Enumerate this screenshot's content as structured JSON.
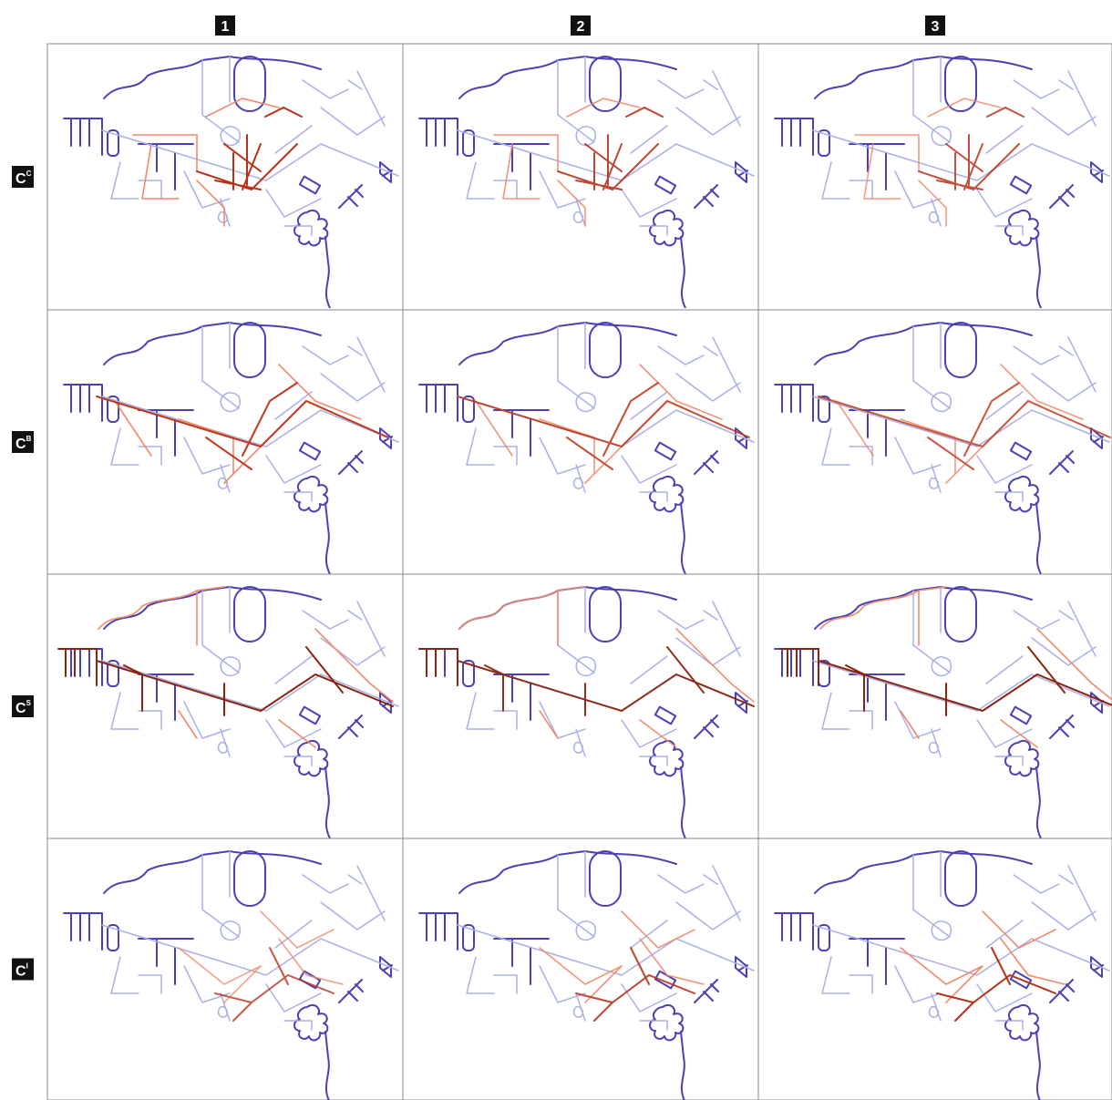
{
  "columns": [
    "1",
    "2",
    "3"
  ],
  "rows": [
    {
      "symbol": "C",
      "superscript": "C"
    },
    {
      "symbol": "C",
      "superscript": "B"
    },
    {
      "symbol": "C",
      "superscript": "S"
    },
    {
      "symbol": "C",
      "superscript": "I"
    }
  ]
}
